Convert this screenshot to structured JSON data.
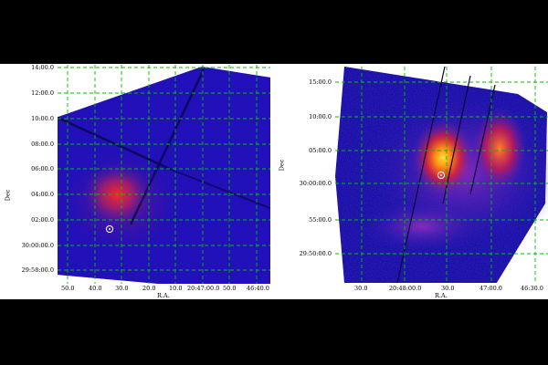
{
  "colors": {
    "page_background": "#000000",
    "panel_background": "#ffffff",
    "grid": "#00c000",
    "marker": "#ffffff"
  },
  "left_image": {
    "xlabel": "R.A.",
    "ylabel": "Dec",
    "xticks": [
      "50.0",
      "40.0",
      "30.0",
      "20.0",
      "10.0",
      "20:47:00.0",
      "50.0",
      "46:40.0"
    ],
    "yticks": [
      "14:00.0",
      "12:00.0",
      "10:00.0",
      "08:00.0",
      "06:00.0",
      "04:00.0",
      "02:00.0",
      "30:00:00.0",
      "29:58:00.0"
    ]
  },
  "right_image": {
    "xlabel": "R.A.",
    "ylabel": "Dec",
    "xticks": [
      "30.0",
      "20:48:00.0",
      "30.0",
      "47:00.0",
      "46:30.0"
    ],
    "yticks": [
      "15:00.0",
      "10:00.0",
      "05:00.0",
      "30:00:00.0",
      "55:00.0",
      "29:50:00.0"
    ]
  }
}
